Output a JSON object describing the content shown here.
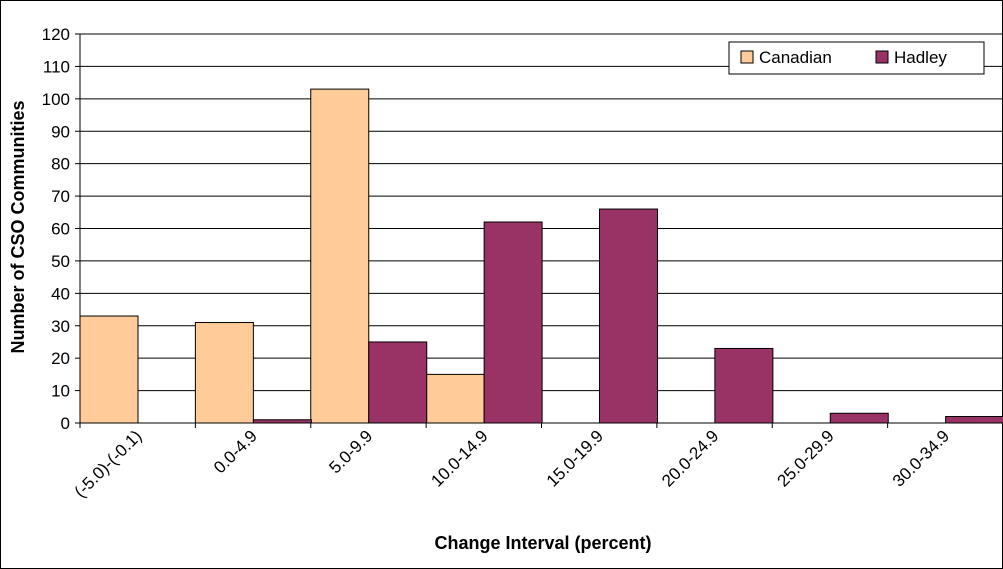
{
  "chart_data": {
    "type": "bar",
    "title": "",
    "xlabel": "Change Interval (percent)",
    "ylabel": "Number of CSO Communities",
    "categories": [
      "(-5.0)-(-0.1)",
      "0.0-4.9",
      "5.0-9.9",
      "10.0-14.9",
      "15.0-19.9",
      "20.0-24.9",
      "25.0-29.9",
      "30.0-34.9"
    ],
    "series": [
      {
        "name": "Canadian",
        "values": [
          33,
          31,
          103,
          15,
          0,
          0,
          0,
          0
        ]
      },
      {
        "name": "Hadley",
        "values": [
          0,
          1,
          25,
          62,
          66,
          23,
          3,
          2
        ]
      }
    ],
    "ylim": [
      0,
      120
    ],
    "y_ticks": [
      0,
      10,
      20,
      30,
      40,
      50,
      60,
      70,
      80,
      90,
      100,
      110,
      120
    ],
    "grid": true,
    "legend_position": "top-right",
    "colors": {
      "Canadian": "#FFCC99",
      "Hadley": "#993366",
      "bar_stroke": "#000000",
      "grid": "#000000"
    }
  }
}
